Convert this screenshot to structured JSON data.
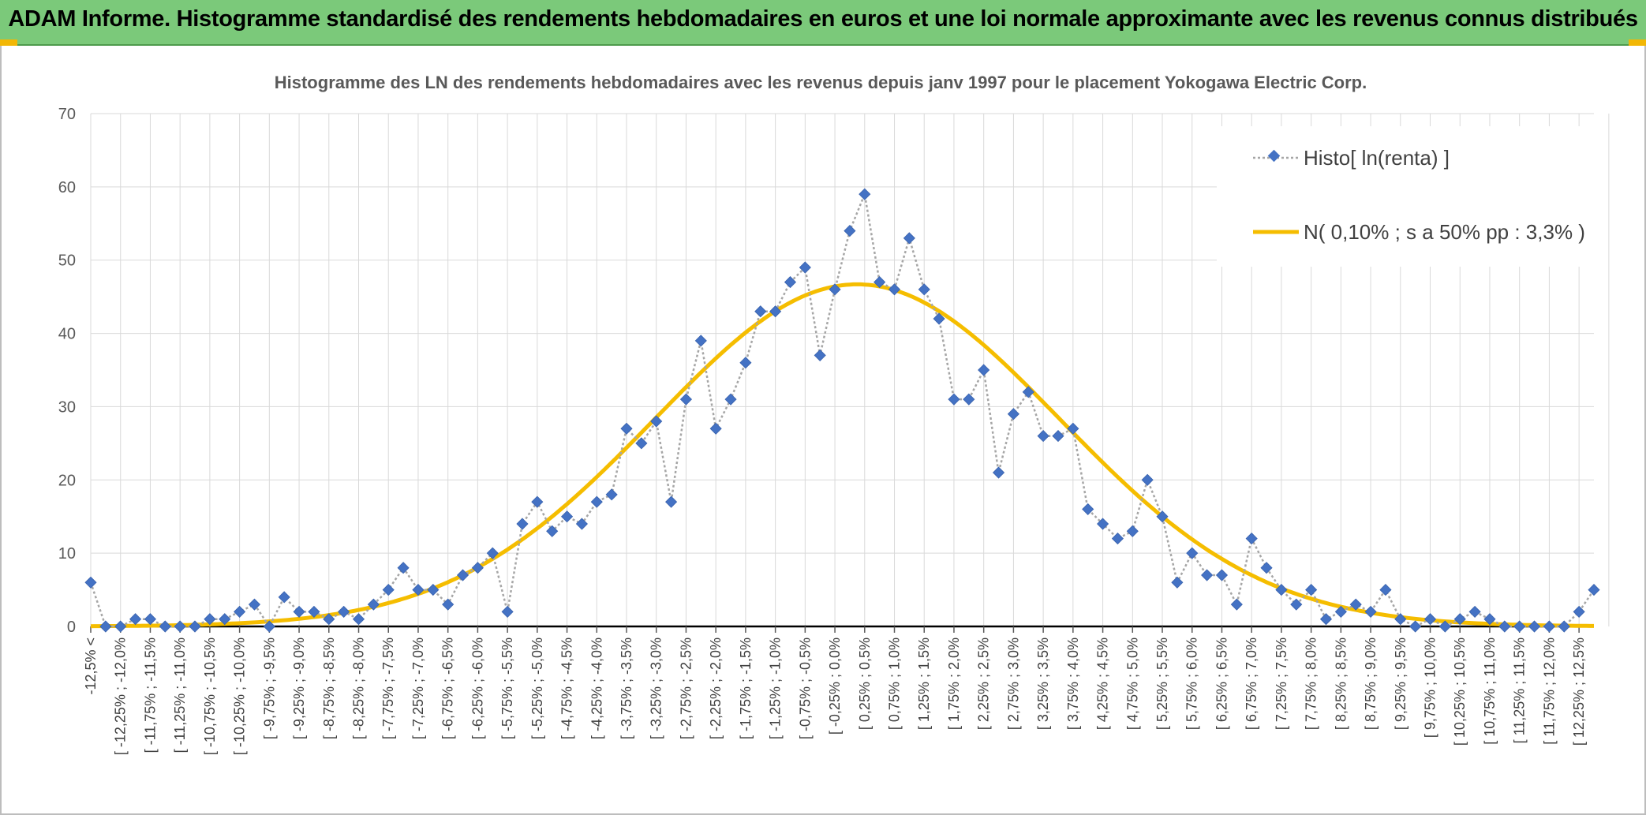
{
  "banner": {
    "title": "ADAM Informe. Histogramme standardisé des rendements hebdomadaires en euros et une loi normale approximante avec les revenus connus distribués"
  },
  "colors": {
    "banner_bg": "#7bc97a",
    "series_marker": "#4472c4",
    "series_line": "#a6a6a6",
    "normal_curve": "#f5bd00",
    "grid": "#d9d9d9",
    "axis": "#000000"
  },
  "chart_data": {
    "type": "line",
    "title": "Histogramme des LN des rendements hebdomadaires avec les revenus depuis janv 1997 pour le placement Yokogawa Electric Corp.",
    "ylim": [
      0,
      70
    ],
    "yticks": [
      0,
      10,
      20,
      30,
      40,
      50,
      60,
      70
    ],
    "grid": true,
    "legend_position": "top-right",
    "categories": [
      "-12,5% <",
      "[ -12,25% ; -12,0%",
      "[ -11,75% ; -11,5%",
      "[ -11,25% ; -11,0%",
      "[ -10,75% ; -10,5%",
      "[ -10,25% ; -10,0%",
      "[ -9,75% ; -9,5%",
      "[ -9,25% ; -9,0%",
      "[ -8,75% ; -8,5%",
      "[ -8,25% ; -8,0%",
      "[ -7,75% ; -7,5%",
      "[ -7,25% ; -7,0%",
      "[ -6,75% ; -6,5%",
      "[ -6,25% ; -6,0%",
      "[ -5,75% ; -5,5%",
      "[ -5,25% ; -5,0%",
      "[ -4,75% ; -4,5%",
      "[ -4,25% ; -4,0%",
      "[ -3,75% ; -3,5%",
      "[ -3,25% ; -3,0%",
      "[ -2,75% ; -2,5%",
      "[ -2,25% ; -2,0%",
      "[ -1,75% ; -1,5%",
      "[ -1,25% ; -1,0%",
      "[ -0,75% ; -0,5%",
      "[ -0,25% ; 0,0%",
      "[ 0,25% ; 0,5%",
      "[ 0,75% ; 1,0%",
      "[ 1,25% ; 1,5%",
      "[ 1,75% ; 2,0%",
      "[ 2,25% ; 2,5%",
      "[ 2,75% ; 3,0%",
      "[ 3,25% ; 3,5%",
      "[ 3,75% ; 4,0%",
      "[ 4,25% ; 4,5%",
      "[ 4,75% ; 5,0%",
      "[ 5,25% ; 5,5%",
      "[ 5,75% ; 6,0%",
      "[ 6,25% ; 6,5%",
      "[ 6,75% ; 7,0%",
      "[ 7,25% ; 7,5%",
      "[ 7,75% ; 8,0%",
      "[ 8,25% ; 8,5%",
      "[ 8,75% ; 9,0%",
      "[ 9,25% ; 9,5%",
      "[ 9,75% ; 10,0%",
      "[ 10,25% ; 10,5%",
      "[ 10,75% ; 11,0%",
      "[ 11,25% ; 11,5%",
      "[ 11,75% ; 12,0%",
      "[ 12,25% ; 12,5%"
    ],
    "histogram": {
      "name": "Histo[ ln(renta) ]",
      "values": [
        6,
        0,
        0,
        1,
        1,
        0,
        0,
        0,
        1,
        1,
        2,
        3,
        0,
        4,
        2,
        2,
        1,
        2,
        1,
        3,
        5,
        8,
        5,
        5,
        3,
        7,
        8,
        10,
        2,
        14,
        17,
        13,
        15,
        14,
        17,
        18,
        27,
        25,
        28,
        17,
        31,
        39,
        27,
        31,
        36,
        43,
        43,
        47,
        49,
        37,
        46,
        54,
        59,
        47,
        46,
        53,
        46,
        42,
        31,
        31,
        35,
        21,
        29,
        32,
        26,
        26,
        27,
        16,
        14,
        12,
        13,
        20,
        15,
        6,
        10,
        7,
        7,
        3,
        12,
        8,
        5,
        3,
        5,
        1,
        2,
        3,
        2,
        5,
        1,
        0,
        1,
        0,
        1,
        2,
        1,
        0,
        0,
        0,
        0,
        0,
        2,
        5
      ]
    },
    "normal": {
      "name": "N( 0,10% ; s a 50% pp : 3,3% )",
      "peak": 46.7,
      "peak_index": 51.5,
      "sigma_bins": 13.6
    }
  }
}
